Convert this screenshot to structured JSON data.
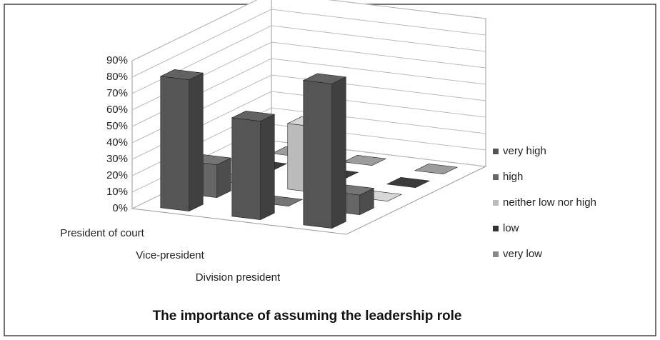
{
  "chart_data": {
    "type": "bar3d",
    "title": "The importance of assuming the leadership role",
    "categories": [
      "President of court",
      "Vice-president",
      "Division president"
    ],
    "series": [
      {
        "name": "very high",
        "color": "#555555",
        "values": [
          80,
          60,
          88
        ]
      },
      {
        "name": "high",
        "color": "#666666",
        "values": [
          20,
          0,
          12
        ]
      },
      {
        "name": "neither low nor high",
        "color": "#bbbbbb",
        "values": [
          0,
          40,
          0
        ]
      },
      {
        "name": "low",
        "color": "#333333",
        "values": [
          0,
          0,
          0
        ]
      },
      {
        "name": "very low",
        "color": "#888888",
        "values": [
          0,
          0,
          0
        ]
      }
    ],
    "ylim": [
      0,
      90
    ],
    "yticks": [
      {
        "value": 0,
        "label": "0%"
      },
      {
        "value": 10,
        "label": "10%"
      },
      {
        "value": 20,
        "label": "20%"
      },
      {
        "value": 30,
        "label": "30%"
      },
      {
        "value": 40,
        "label": "40%"
      },
      {
        "value": 50,
        "label": "50%"
      },
      {
        "value": 60,
        "label": "60%"
      },
      {
        "value": 70,
        "label": "70%"
      },
      {
        "value": 80,
        "label": "80%"
      },
      {
        "value": 90,
        "label": "90%"
      }
    ],
    "grid": true,
    "legend": "right"
  }
}
